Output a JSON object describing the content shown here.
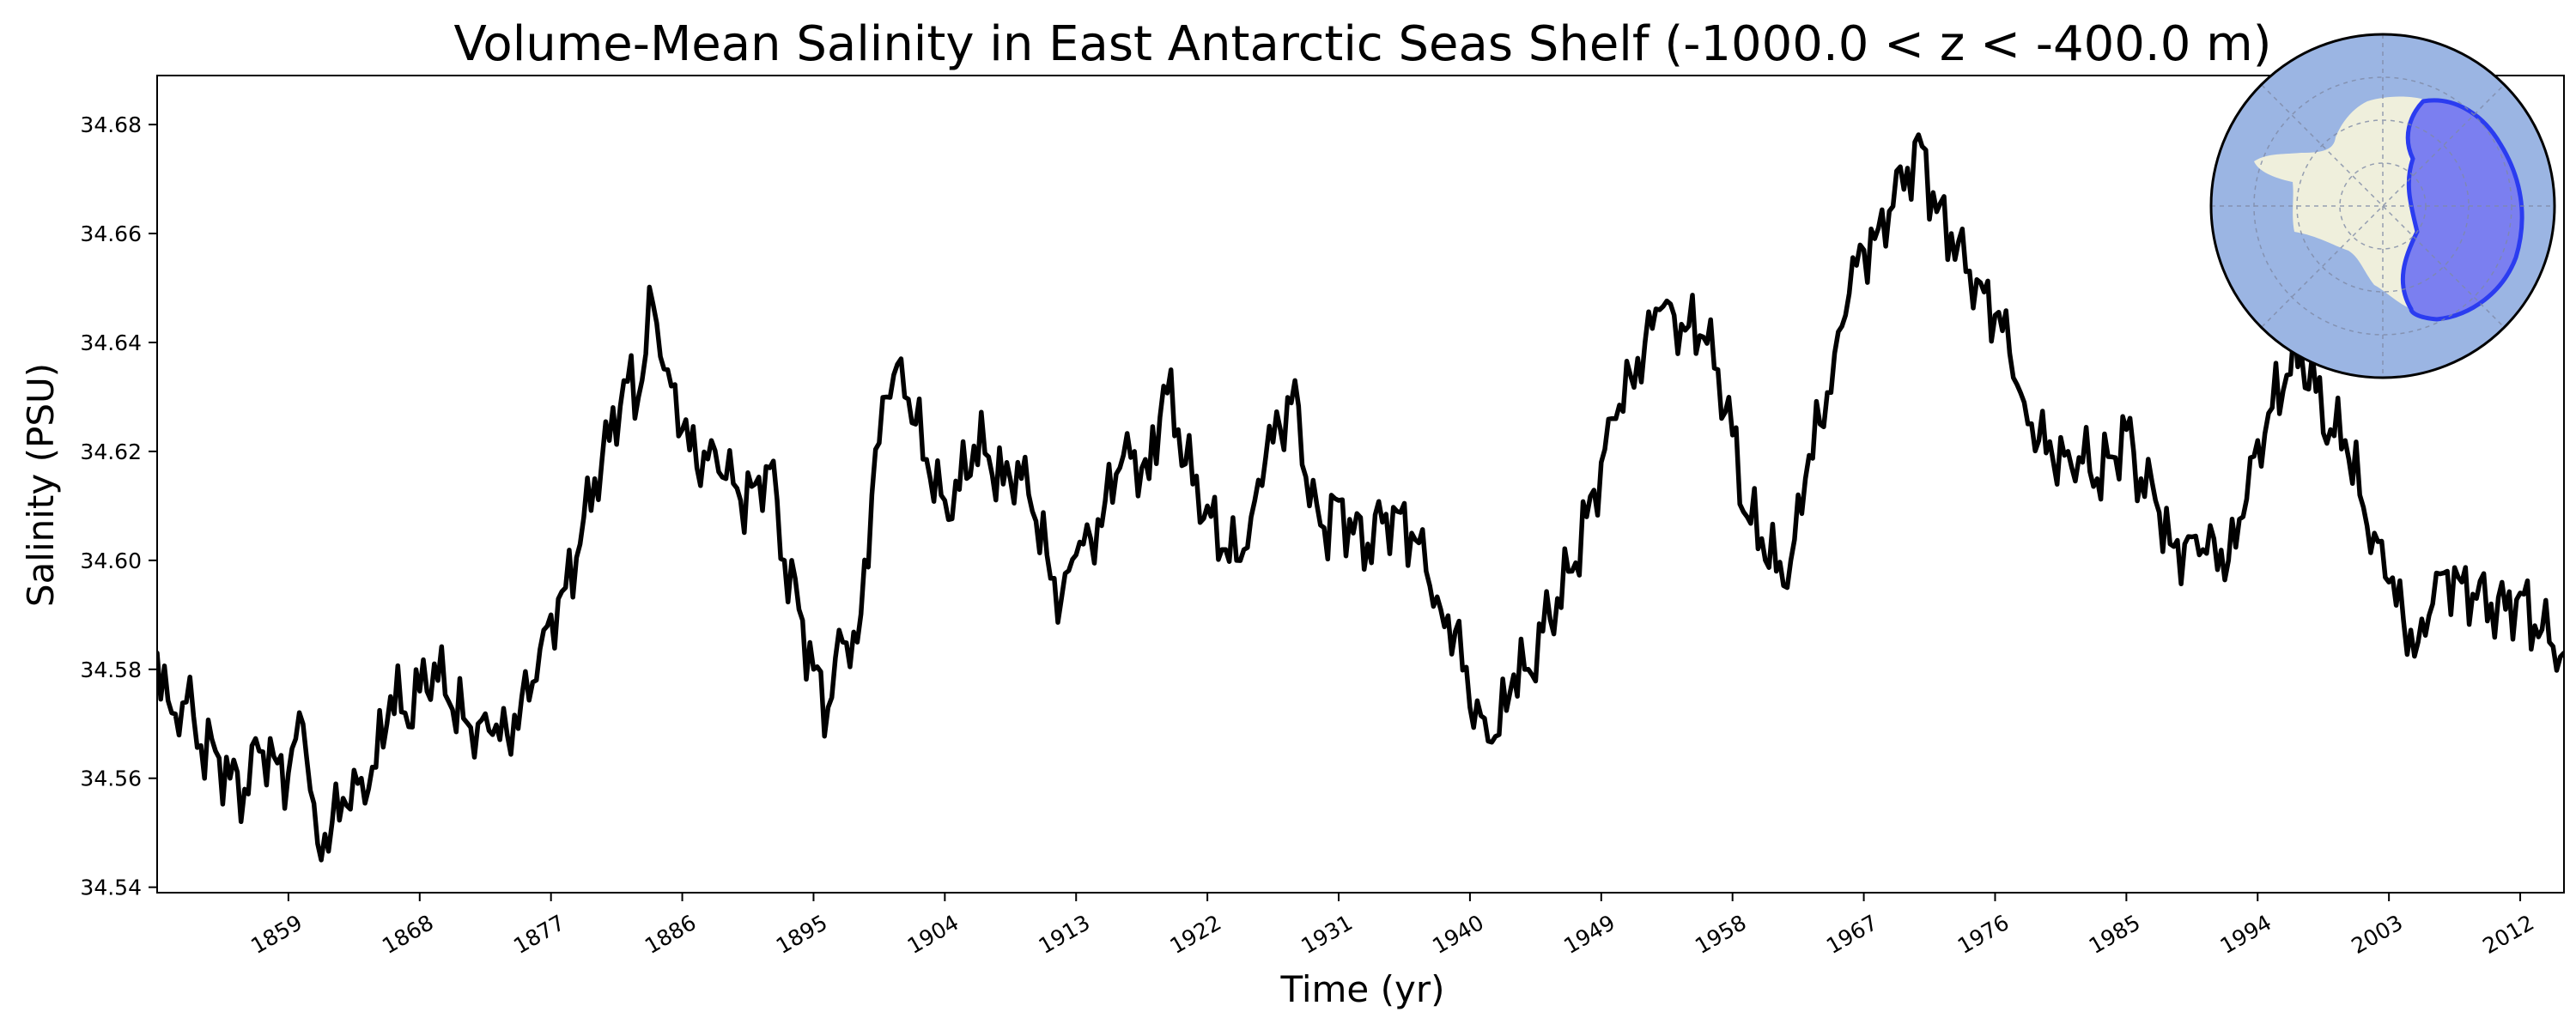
{
  "chart_data": {
    "type": "line",
    "title": "Volume-Mean Salinity in East Antarctic Seas Shelf (-1000.0 < z < -400.0 m)",
    "xlabel": "Time (yr)",
    "ylabel": "Salinity (PSU)",
    "xlim": [
      1850,
      2015
    ],
    "ylim": [
      34.539,
      34.689
    ],
    "x_ticks": [
      1859,
      1868,
      1877,
      1886,
      1895,
      1904,
      1913,
      1922,
      1931,
      1940,
      1949,
      1958,
      1967,
      1976,
      1985,
      1994,
      2003,
      2012
    ],
    "x_tick_labels": [
      "1859",
      "1868",
      "1877",
      "1886",
      "1895",
      "1904",
      "1913",
      "1922",
      "1931",
      "1940",
      "1949",
      "1958",
      "1967",
      "1976",
      "1985",
      "1994",
      "2003",
      "2012"
    ],
    "y_ticks": [
      34.54,
      34.56,
      34.58,
      34.6,
      34.62,
      34.64,
      34.66,
      34.68
    ],
    "y_tick_labels": [
      "34.54",
      "34.56",
      "34.58",
      "34.60",
      "34.62",
      "34.64",
      "34.66",
      "34.68"
    ],
    "grid": false,
    "line_color": "#000000",
    "inset_map": {
      "description_icon": "antarctica-region-map",
      "ocean_color": "#9bb5e3",
      "land_color": "#efefdc",
      "region_color": "#7b7ff0",
      "region_edge_color": "#2b3cf0"
    },
    "series": [
      {
        "x": [
          1850.0,
          1851.0,
          1852.0,
          1853.0,
          1854.0,
          1855.0,
          1856.0,
          1857.0,
          1858.0,
          1859.0,
          1860.0,
          1861.0,
          1862.0,
          1863.0,
          1864.0,
          1865.0,
          1866.0,
          1867.0,
          1868.0,
          1869.0,
          1870.0,
          1871.0,
          1872.0,
          1873.0,
          1874.0,
          1875.0,
          1876.0,
          1877.0,
          1878.0,
          1879.0,
          1880.0,
          1881.0,
          1882.0,
          1883.0,
          1884.0,
          1885.0,
          1886.0,
          1887.0,
          1888.0,
          1889.0,
          1890.0,
          1891.0,
          1892.0,
          1893.0,
          1894.0,
          1895.0,
          1896.0,
          1897.0,
          1898.0,
          1899.0,
          1900.0,
          1901.0,
          1902.0,
          1903.0,
          1904.0,
          1905.0,
          1906.0,
          1907.0,
          1908.0,
          1909.0,
          1910.0,
          1911.0,
          1912.0,
          1913.0,
          1914.0,
          1915.0,
          1916.0,
          1917.0,
          1918.0,
          1919.0,
          1920.0,
          1921.0,
          1922.0,
          1923.0,
          1924.0,
          1925.0,
          1926.0,
          1927.0,
          1928.0,
          1929.0,
          1930.0,
          1931.0,
          1932.0,
          1933.0,
          1934.0,
          1935.0,
          1936.0,
          1937.0,
          1938.0,
          1939.0,
          1940.0,
          1941.0,
          1942.0,
          1943.0,
          1944.0,
          1945.0,
          1946.0,
          1947.0,
          1948.0,
          1949.0,
          1950.0,
          1951.0,
          1952.0,
          1953.0,
          1954.0,
          1955.0,
          1956.0,
          1957.0,
          1958.0,
          1959.0,
          1960.0,
          1961.0,
          1962.0,
          1963.0,
          1964.0,
          1965.0,
          1966.0,
          1967.0,
          1968.0,
          1969.0,
          1970.0,
          1971.0,
          1972.0,
          1973.0,
          1974.0,
          1975.0,
          1976.0,
          1977.0,
          1978.0,
          1979.0,
          1980.0,
          1981.0,
          1982.0,
          1983.0,
          1984.0,
          1985.0,
          1986.0,
          1987.0,
          1988.0,
          1989.0,
          1990.0,
          1991.0,
          1992.0,
          1993.0,
          1994.0,
          1995.0,
          1996.0,
          1997.0,
          1998.0,
          1999.0,
          2000.0,
          2001.0,
          2002.0,
          2003.0,
          2004.0,
          2005.0,
          2006.0,
          2007.0,
          2008.0,
          2009.0,
          2010.0,
          2011.0,
          2012.0,
          2013.0,
          2014.0,
          2015.0
        ],
        "y": [
          34.583,
          34.572,
          34.574,
          34.566,
          34.565,
          34.56,
          34.558,
          34.565,
          34.564,
          34.561,
          34.57,
          34.548,
          34.552,
          34.555,
          34.56,
          34.562,
          34.575,
          34.572,
          34.576,
          34.581,
          34.574,
          34.571,
          34.57,
          34.568,
          34.568,
          34.575,
          34.578,
          34.59,
          34.595,
          34.603,
          34.615,
          34.622,
          34.633,
          34.63,
          34.647,
          34.635,
          34.624,
          34.617,
          34.622,
          34.615,
          34.611,
          34.614,
          34.617,
          34.6,
          34.591,
          34.58,
          34.573,
          34.585,
          34.585,
          34.612,
          34.63,
          34.637,
          34.625,
          34.615,
          34.611,
          34.613,
          34.621,
          34.619,
          34.614,
          34.618,
          34.609,
          34.601,
          34.593,
          34.601,
          34.604,
          34.611,
          34.617,
          34.62,
          34.615,
          34.632,
          34.624,
          34.614,
          34.61,
          34.602,
          34.6,
          34.608,
          34.619,
          34.624,
          34.633,
          34.61,
          34.606,
          34.611,
          34.605,
          34.603,
          34.607,
          34.609,
          34.605,
          34.598,
          34.591,
          34.587,
          34.573,
          34.571,
          34.568,
          34.579,
          34.58,
          34.587,
          34.593,
          34.598,
          34.608,
          34.618,
          34.626,
          34.634,
          34.64,
          34.646,
          34.645,
          34.643,
          34.641,
          34.635,
          34.623,
          34.608,
          34.604,
          34.598,
          34.6,
          34.615,
          34.625,
          34.638,
          34.649,
          34.657,
          34.661,
          34.665,
          34.672,
          34.676,
          34.664,
          34.66,
          34.653,
          34.651,
          34.645,
          34.638,
          34.629,
          34.622,
          34.618,
          34.62,
          34.618,
          34.615,
          34.619,
          34.624,
          34.615,
          34.611,
          34.603,
          34.603,
          34.601,
          34.604,
          34.6,
          34.608,
          34.622,
          34.628,
          34.634,
          34.638,
          34.631,
          34.624,
          34.622,
          34.612,
          34.605,
          34.596,
          34.589,
          34.585,
          34.592,
          34.598,
          34.596,
          34.593,
          34.592,
          34.591,
          34.594,
          34.588,
          34.585,
          34.583
        ]
      }
    ]
  }
}
